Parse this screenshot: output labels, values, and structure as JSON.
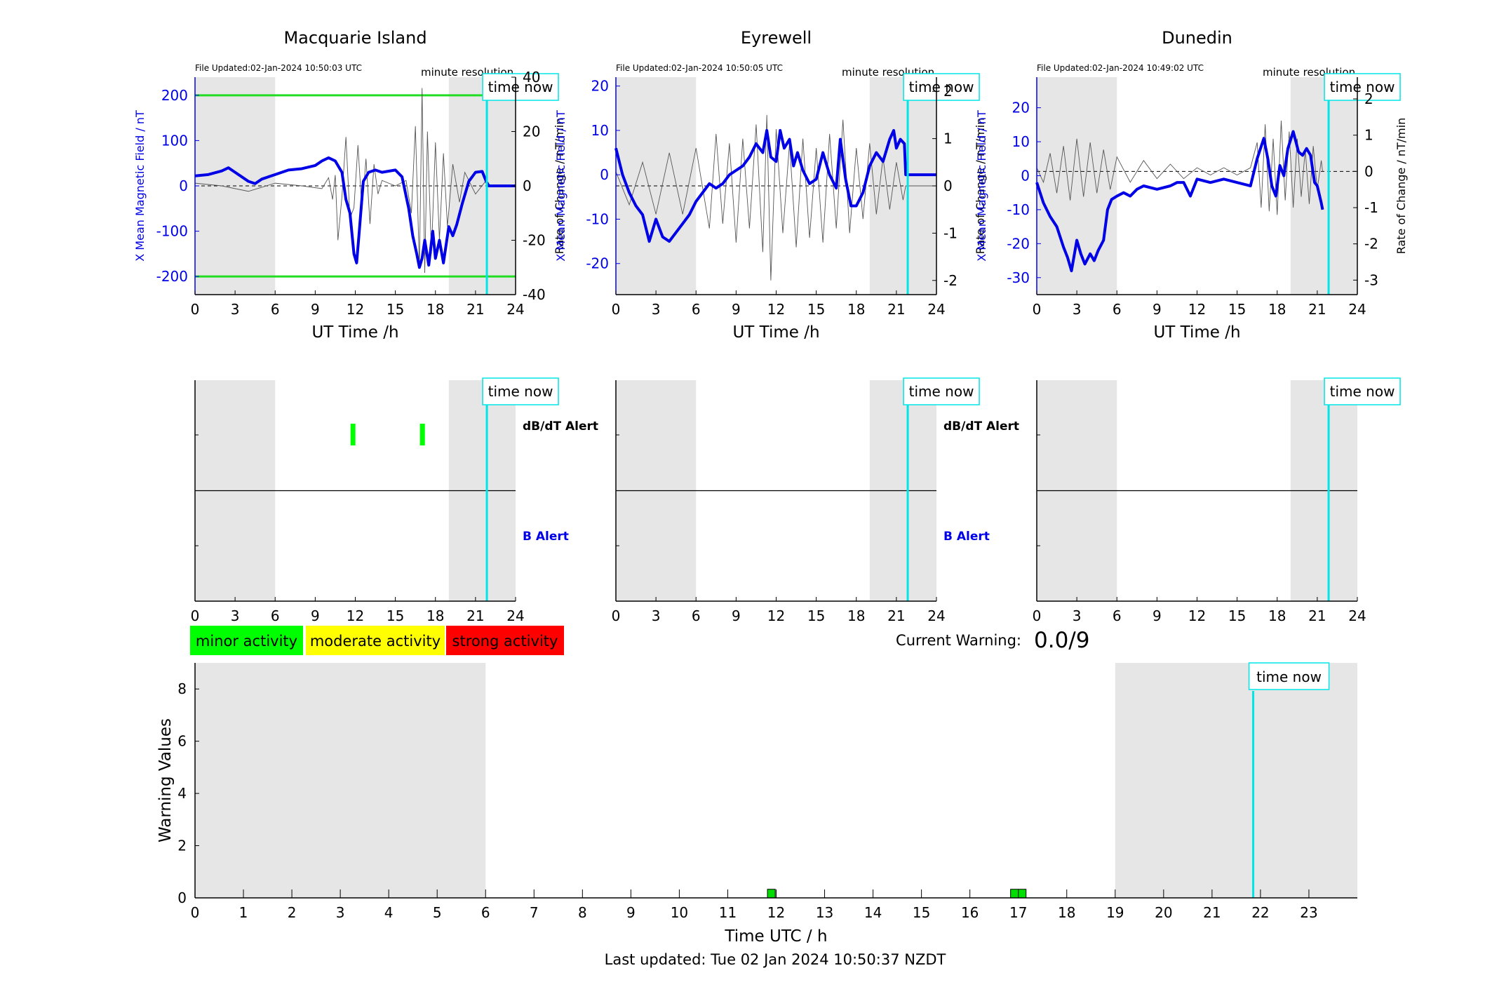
{
  "common": {
    "x_label": "UT Time /h",
    "y_left_label": "X Mean Magnetic Field / nT",
    "y_right_label": "Rate of Change / nT/min",
    "resolution_label": "minute resolution",
    "time_now_label": "time now",
    "time_now_hour": 21.85,
    "dbdt_alert_label": "dB/dT Alert",
    "b_alert_label": "B Alert",
    "x_ticks": [
      0,
      3,
      6,
      9,
      12,
      15,
      18,
      21,
      24
    ],
    "night_bands": [
      [
        0,
        6
      ],
      [
        19,
        24
      ]
    ],
    "colors": {
      "field": "#0000e6",
      "rate": "#555555",
      "threshold": "#22dd22",
      "time_now": "#00e5e5",
      "night": "#e6e6e6",
      "alert_green": "#00ff00"
    }
  },
  "stations": [
    {
      "name": "Macquarie Island",
      "file_updated": "File Updated:02-Jan-2024 10:50:03 UTC",
      "ylim": [
        -240,
        240
      ],
      "y_ticks": [
        -200,
        -100,
        0,
        100,
        200
      ],
      "y_tick_labels": [
        "-200",
        "-100",
        "0",
        "100",
        "200"
      ],
      "rate_ylim": [
        -40,
        40
      ],
      "rate_ticks": [
        -40,
        -20,
        0,
        20,
        40
      ],
      "rate_tick_labels": [
        "-40",
        "-20",
        "0",
        "20",
        "40"
      ],
      "thresholds": [
        200,
        -200
      ],
      "show_alert_labels": true,
      "field_series": [
        [
          0,
          22
        ],
        [
          1,
          25
        ],
        [
          2,
          33
        ],
        [
          2.5,
          40
        ],
        [
          3,
          30
        ],
        [
          3.5,
          20
        ],
        [
          4,
          10
        ],
        [
          4.5,
          5
        ],
        [
          5,
          15
        ],
        [
          6,
          25
        ],
        [
          7,
          35
        ],
        [
          8,
          38
        ],
        [
          9,
          45
        ],
        [
          9.5,
          55
        ],
        [
          10,
          62
        ],
        [
          10.5,
          55
        ],
        [
          11,
          30
        ],
        [
          11.3,
          -30
        ],
        [
          11.6,
          -60
        ],
        [
          11.9,
          -150
        ],
        [
          12.1,
          -170
        ],
        [
          12.3,
          -100
        ],
        [
          12.6,
          10
        ],
        [
          13,
          30
        ],
        [
          13.5,
          35
        ],
        [
          14,
          30
        ],
        [
          15,
          35
        ],
        [
          15.5,
          20
        ],
        [
          16,
          -50
        ],
        [
          16.3,
          -110
        ],
        [
          16.6,
          -150
        ],
        [
          16.8,
          -180
        ],
        [
          17,
          -160
        ],
        [
          17.2,
          -120
        ],
        [
          17.5,
          -175
        ],
        [
          17.8,
          -100
        ],
        [
          18,
          -160
        ],
        [
          18.3,
          -120
        ],
        [
          18.6,
          -170
        ],
        [
          19,
          -90
        ],
        [
          19.3,
          -110
        ],
        [
          19.6,
          -85
        ],
        [
          20,
          -40
        ],
        [
          20.5,
          10
        ],
        [
          21,
          30
        ],
        [
          21.5,
          32
        ],
        [
          21.8,
          10
        ],
        [
          22,
          0
        ],
        [
          24,
          0
        ]
      ],
      "rate_series": [
        [
          0,
          1
        ],
        [
          2,
          0
        ],
        [
          4,
          -2
        ],
        [
          6,
          1
        ],
        [
          8,
          0
        ],
        [
          9.5,
          -1
        ],
        [
          10,
          3
        ],
        [
          10.3,
          -5
        ],
        [
          10.5,
          4
        ],
        [
          10.7,
          -20
        ],
        [
          11,
          -4
        ],
        [
          11.3,
          18
        ],
        [
          11.6,
          -12
        ],
        [
          11.9,
          -8
        ],
        [
          12.2,
          15
        ],
        [
          12.5,
          -9
        ],
        [
          12.8,
          10
        ],
        [
          13.1,
          -14
        ],
        [
          13.4,
          8
        ],
        [
          13.7,
          -3
        ],
        [
          14,
          2
        ],
        [
          15,
          0
        ],
        [
          15.8,
          2
        ],
        [
          16.2,
          -10
        ],
        [
          16.5,
          22
        ],
        [
          16.8,
          -30
        ],
        [
          17.0,
          36
        ],
        [
          17.2,
          -32
        ],
        [
          17.4,
          20
        ],
        [
          17.7,
          -25
        ],
        [
          18,
          16
        ],
        [
          18.3,
          -20
        ],
        [
          18.6,
          12
        ],
        [
          18.9,
          -15
        ],
        [
          19.3,
          8
        ],
        [
          19.8,
          -6
        ],
        [
          20.2,
          5
        ],
        [
          21,
          -3
        ],
        [
          21.8,
          2
        ],
        [
          22,
          0
        ],
        [
          24,
          0
        ]
      ],
      "alerts": [
        {
          "hour": 11.8,
          "level": "minor"
        },
        {
          "hour": 17.0,
          "level": "minor"
        }
      ]
    },
    {
      "name": "Eyrewell",
      "file_updated": "File Updated:02-Jan-2024 10:50:05 UTC",
      "ylim": [
        -27,
        22
      ],
      "y_ticks": [
        -20,
        -10,
        0,
        10,
        20
      ],
      "y_tick_labels": [
        "-20",
        "-10",
        "0",
        "10",
        "20"
      ],
      "rate_ylim": [
        -2.3,
        2.3
      ],
      "rate_ticks": [
        -2,
        -1,
        0,
        1,
        2
      ],
      "rate_tick_labels": [
        "-2",
        "-1",
        "0",
        "1",
        "2"
      ],
      "thresholds": [],
      "show_alert_labels": true,
      "field_series": [
        [
          0,
          6
        ],
        [
          0.5,
          0
        ],
        [
          1,
          -4
        ],
        [
          1.5,
          -7
        ],
        [
          2,
          -9
        ],
        [
          2.5,
          -15
        ],
        [
          3,
          -10
        ],
        [
          3.5,
          -14
        ],
        [
          4,
          -15
        ],
        [
          4.5,
          -13
        ],
        [
          5,
          -11
        ],
        [
          5.5,
          -9
        ],
        [
          6,
          -6
        ],
        [
          6.5,
          -4
        ],
        [
          7,
          -2
        ],
        [
          7.5,
          -3
        ],
        [
          8,
          -2
        ],
        [
          8.5,
          0
        ],
        [
          9,
          1
        ],
        [
          9.5,
          2
        ],
        [
          10,
          4
        ],
        [
          10.5,
          7
        ],
        [
          11,
          5
        ],
        [
          11.3,
          10
        ],
        [
          11.6,
          4
        ],
        [
          12,
          3
        ],
        [
          12.3,
          10
        ],
        [
          12.6,
          6
        ],
        [
          13,
          8
        ],
        [
          13.3,
          2
        ],
        [
          13.6,
          5
        ],
        [
          14,
          1
        ],
        [
          14.5,
          -2
        ],
        [
          15,
          -1
        ],
        [
          15.5,
          5
        ],
        [
          16,
          0
        ],
        [
          16.5,
          -3
        ],
        [
          16.8,
          8
        ],
        [
          17.2,
          -1
        ],
        [
          17.6,
          -7
        ],
        [
          18,
          -7
        ],
        [
          18.5,
          -4
        ],
        [
          19,
          2
        ],
        [
          19.5,
          5
        ],
        [
          20,
          3
        ],
        [
          20.5,
          8
        ],
        [
          20.8,
          10
        ],
        [
          21,
          6
        ],
        [
          21.3,
          8
        ],
        [
          21.6,
          7
        ],
        [
          21.7,
          0
        ],
        [
          24,
          0
        ]
      ],
      "rate_series": [
        [
          0,
          0.3
        ],
        [
          1,
          -0.4
        ],
        [
          2,
          0.5
        ],
        [
          3,
          -0.6
        ],
        [
          4,
          0.7
        ],
        [
          5,
          -0.6
        ],
        [
          6,
          0.8
        ],
        [
          7,
          -0.9
        ],
        [
          7.5,
          1.1
        ],
        [
          8,
          -0.8
        ],
        [
          8.5,
          0.9
        ],
        [
          9,
          -1.2
        ],
        [
          9.5,
          1.0
        ],
        [
          10,
          -0.9
        ],
        [
          10.5,
          1.3
        ],
        [
          11,
          -1.4
        ],
        [
          11.3,
          1.5
        ],
        [
          11.6,
          -2.0
        ],
        [
          12,
          1.2
        ],
        [
          12.5,
          -1.0
        ],
        [
          13,
          0.9
        ],
        [
          13.5,
          -1.3
        ],
        [
          14,
          1.0
        ],
        [
          14.5,
          -1.1
        ],
        [
          15,
          0.8
        ],
        [
          15.5,
          -1.2
        ],
        [
          16,
          1.1
        ],
        [
          16.5,
          -0.9
        ],
        [
          17,
          1.4
        ],
        [
          17.5,
          -1.0
        ],
        [
          18,
          0.8
        ],
        [
          18.5,
          -0.7
        ],
        [
          19,
          0.9
        ],
        [
          19.5,
          -0.6
        ],
        [
          20,
          0.6
        ],
        [
          20.5,
          -0.5
        ],
        [
          21,
          0.5
        ],
        [
          21.5,
          -0.3
        ],
        [
          21.7,
          0
        ],
        [
          24,
          0
        ]
      ],
      "alerts": []
    },
    {
      "name": "Dunedin",
      "file_updated": "File Updated:02-Jan-2024 10:49:02 UTC",
      "ylim": [
        -35,
        29
      ],
      "y_ticks": [
        -30,
        -20,
        -10,
        0,
        10,
        20
      ],
      "y_tick_labels": [
        "-30",
        "-20",
        "-10",
        "0",
        "10",
        "20"
      ],
      "rate_ylim": [
        -3.4,
        2.6
      ],
      "rate_ticks": [
        -3,
        -2,
        -1,
        0,
        1,
        2
      ],
      "rate_tick_labels": [
        "-3",
        "-2",
        "-1",
        "0",
        "1",
        "2"
      ],
      "thresholds": [],
      "show_alert_labels": false,
      "field_series": [
        [
          0,
          -2
        ],
        [
          0.5,
          -8
        ],
        [
          1,
          -12
        ],
        [
          1.5,
          -15
        ],
        [
          2,
          -21
        ],
        [
          2.3,
          -24
        ],
        [
          2.6,
          -28
        ],
        [
          3,
          -19
        ],
        [
          3.3,
          -23
        ],
        [
          3.6,
          -26
        ],
        [
          4,
          -23
        ],
        [
          4.3,
          -25
        ],
        [
          4.6,
          -22
        ],
        [
          5,
          -19
        ],
        [
          5.3,
          -10
        ],
        [
          5.6,
          -7
        ],
        [
          6,
          -6
        ],
        [
          6.5,
          -5
        ],
        [
          7,
          -6
        ],
        [
          7.5,
          -4
        ],
        [
          8,
          -3
        ],
        [
          9,
          -4
        ],
        [
          10,
          -3
        ],
        [
          10.5,
          -2
        ],
        [
          11,
          -2
        ],
        [
          11.5,
          -6
        ],
        [
          12,
          -1
        ],
        [
          13,
          -2
        ],
        [
          14,
          -1
        ],
        [
          15,
          -2
        ],
        [
          16,
          -3
        ],
        [
          16.5,
          5
        ],
        [
          17,
          11
        ],
        [
          17.3,
          5
        ],
        [
          17.6,
          -3
        ],
        [
          17.9,
          -6
        ],
        [
          18.2,
          3
        ],
        [
          18.5,
          0
        ],
        [
          18.8,
          8
        ],
        [
          19.2,
          13
        ],
        [
          19.6,
          7
        ],
        [
          19.9,
          6
        ],
        [
          20.2,
          8
        ],
        [
          20.5,
          6
        ],
        [
          20.8,
          -2
        ],
        [
          21,
          -3
        ],
        [
          21.3,
          -8
        ],
        [
          21.4,
          -10
        ]
      ],
      "rate_series": [
        [
          0,
          0.1
        ],
        [
          0.5,
          -0.3
        ],
        [
          1,
          0.5
        ],
        [
          1.5,
          -0.6
        ],
        [
          2,
          0.7
        ],
        [
          2.5,
          -0.8
        ],
        [
          3,
          0.9
        ],
        [
          3.5,
          -0.7
        ],
        [
          4,
          0.8
        ],
        [
          4.5,
          -0.6
        ],
        [
          5,
          0.6
        ],
        [
          5.5,
          -0.5
        ],
        [
          6,
          0.4
        ],
        [
          7,
          -0.3
        ],
        [
          8,
          0.3
        ],
        [
          9,
          -0.2
        ],
        [
          10,
          0.2
        ],
        [
          11,
          -0.2
        ],
        [
          12,
          0.1
        ],
        [
          13,
          -0.1
        ],
        [
          14,
          0.1
        ],
        [
          15,
          -0.1
        ],
        [
          16,
          0.1
        ],
        [
          16.5,
          0.8
        ],
        [
          16.8,
          -1.0
        ],
        [
          17.1,
          1.3
        ],
        [
          17.4,
          -1.1
        ],
        [
          17.7,
          0.9
        ],
        [
          18,
          -1.2
        ],
        [
          18.3,
          1.4
        ],
        [
          18.6,
          -0.8
        ],
        [
          18.9,
          1.1
        ],
        [
          19.2,
          -1.0
        ],
        [
          19.5,
          0.9
        ],
        [
          19.8,
          -0.7
        ],
        [
          20.1,
          0.6
        ],
        [
          20.4,
          -0.9
        ],
        [
          20.7,
          0.7
        ],
        [
          21,
          -0.5
        ],
        [
          21.3,
          0.3
        ],
        [
          21.4,
          0
        ]
      ],
      "alerts": []
    }
  ],
  "legend": [
    {
      "label": "minor activity",
      "color": "#00ff00"
    },
    {
      "label": "moderate activity",
      "color": "#ffff00"
    },
    {
      "label": "strong activity",
      "color": "#ff0000"
    }
  ],
  "current_warning": {
    "label": "Current Warning:",
    "value": "0.0/9"
  },
  "warning_chart": {
    "ylabel": "Warning Values",
    "xlabel": "Time UTC / h",
    "ylim": [
      0,
      9
    ],
    "y_ticks": [
      0,
      2,
      4,
      6,
      8
    ],
    "x_ticks": [
      0,
      1,
      2,
      3,
      4,
      5,
      6,
      7,
      8,
      9,
      10,
      11,
      12,
      13,
      14,
      15,
      16,
      17,
      18,
      19,
      20,
      21,
      22,
      23
    ],
    "xlim": [
      0,
      24
    ],
    "night_bands": [
      [
        0,
        6
      ],
      [
        19,
        24
      ]
    ],
    "time_now_hour": 21.85,
    "bars": [
      {
        "hour": 11.9,
        "value": 0.33,
        "width": 0.16
      },
      {
        "hour": 17.0,
        "value": 0.33,
        "width": 0.32
      }
    ]
  },
  "footer": "Last updated: Tue 02 Jan 2024 10:50:37 NZDT"
}
